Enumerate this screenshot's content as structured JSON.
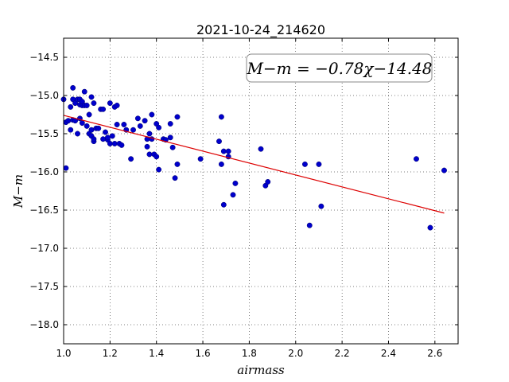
{
  "chart_data": {
    "type": "scatter",
    "title": "2021-10-24_214620",
    "xlabel": "airmass",
    "ylabel": "M−m",
    "xlim": [
      1.0,
      2.7
    ],
    "ylim": [
      -18.25,
      -14.25
    ],
    "y_inverted": true,
    "grid": true,
    "xticks": [
      1.0,
      1.2,
      1.4,
      1.6,
      1.8,
      2.0,
      2.2,
      2.4,
      2.6
    ],
    "xtick_labels": [
      "1.0",
      "1.2",
      "1.4",
      "1.6",
      "1.8",
      "2.0",
      "2.2",
      "2.4",
      "2.6"
    ],
    "yticks": [
      -14.5,
      -15.0,
      -15.5,
      -16.0,
      -16.5,
      -17.0,
      -17.5,
      -18.0
    ],
    "ytick_labels": [
      "−14.5",
      "−15.0",
      "−15.5",
      "−16.0",
      "−16.5",
      "−17.0",
      "−17.5",
      "−18.0"
    ],
    "annotation": "M−m = −0.78χ−14.48",
    "annotation_position": "top-right",
    "points_color": "#0000cc",
    "fit_color": "#dd0000",
    "fit": {
      "slope": -0.78,
      "intercept": -14.48,
      "x_range": [
        1.0,
        2.64
      ]
    },
    "points": [
      [
        1.0,
        -15.05
      ],
      [
        1.01,
        -15.35
      ],
      [
        1.01,
        -15.95
      ],
      [
        1.02,
        -15.33
      ],
      [
        1.03,
        -15.45
      ],
      [
        1.03,
        -15.15
      ],
      [
        1.04,
        -15.32
      ],
      [
        1.04,
        -15.05
      ],
      [
        1.04,
        -14.9
      ],
      [
        1.05,
        -15.1
      ],
      [
        1.05,
        -15.33
      ],
      [
        1.06,
        -15.05
      ],
      [
        1.06,
        -15.5
      ],
      [
        1.07,
        -15.3
      ],
      [
        1.07,
        -15.12
      ],
      [
        1.07,
        -15.05
      ],
      [
        1.08,
        -15.36
      ],
      [
        1.08,
        -15.13
      ],
      [
        1.08,
        -15.08
      ],
      [
        1.09,
        -14.95
      ],
      [
        1.09,
        -15.13
      ],
      [
        1.1,
        -15.4
      ],
      [
        1.1,
        -15.13
      ],
      [
        1.11,
        -15.5
      ],
      [
        1.11,
        -15.25
      ],
      [
        1.12,
        -15.53
      ],
      [
        1.12,
        -15.45
      ],
      [
        1.12,
        -15.02
      ],
      [
        1.13,
        -15.6
      ],
      [
        1.13,
        -15.57
      ],
      [
        1.13,
        -15.1
      ],
      [
        1.14,
        -15.43
      ],
      [
        1.15,
        -15.43
      ],
      [
        1.16,
        -15.18
      ],
      [
        1.17,
        -15.57
      ],
      [
        1.17,
        -15.18
      ],
      [
        1.18,
        -15.48
      ],
      [
        1.19,
        -15.58
      ],
      [
        1.19,
        -15.55
      ],
      [
        1.2,
        -15.63
      ],
      [
        1.2,
        -15.1
      ],
      [
        1.21,
        -15.53
      ],
      [
        1.22,
        -15.15
      ],
      [
        1.22,
        -15.63
      ],
      [
        1.23,
        -15.38
      ],
      [
        1.23,
        -15.13
      ],
      [
        1.24,
        -15.63
      ],
      [
        1.25,
        -15.65
      ],
      [
        1.26,
        -15.38
      ],
      [
        1.27,
        -15.45
      ],
      [
        1.29,
        -15.83
      ],
      [
        1.3,
        -15.45
      ],
      [
        1.32,
        -15.3
      ],
      [
        1.33,
        -15.4
      ],
      [
        1.35,
        -15.33
      ],
      [
        1.36,
        -15.57
      ],
      [
        1.36,
        -15.67
      ],
      [
        1.37,
        -15.77
      ],
      [
        1.37,
        -15.5
      ],
      [
        1.38,
        -15.25
      ],
      [
        1.38,
        -15.57
      ],
      [
        1.39,
        -15.77
      ],
      [
        1.4,
        -15.8
      ],
      [
        1.4,
        -15.37
      ],
      [
        1.41,
        -15.42
      ],
      [
        1.41,
        -15.97
      ],
      [
        1.43,
        -15.57
      ],
      [
        1.44,
        -15.58
      ],
      [
        1.46,
        -15.55
      ],
      [
        1.46,
        -15.37
      ],
      [
        1.47,
        -15.68
      ],
      [
        1.48,
        -16.08
      ],
      [
        1.49,
        -15.9
      ],
      [
        1.49,
        -15.28
      ],
      [
        1.59,
        -15.83
      ],
      [
        1.67,
        -15.6
      ],
      [
        1.68,
        -15.9
      ],
      [
        1.68,
        -15.28
      ],
      [
        1.69,
        -15.73
      ],
      [
        1.69,
        -16.43
      ],
      [
        1.71,
        -15.73
      ],
      [
        1.71,
        -15.8
      ],
      [
        1.73,
        -16.3
      ],
      [
        1.74,
        -16.15
      ],
      [
        1.85,
        -15.7
      ],
      [
        1.87,
        -16.18
      ],
      [
        1.88,
        -16.13
      ],
      [
        2.04,
        -15.9
      ],
      [
        2.06,
        -16.7
      ],
      [
        2.1,
        -15.9
      ],
      [
        2.11,
        -16.45
      ],
      [
        2.52,
        -15.83
      ],
      [
        2.58,
        -16.73
      ],
      [
        2.64,
        -15.98
      ]
    ]
  }
}
